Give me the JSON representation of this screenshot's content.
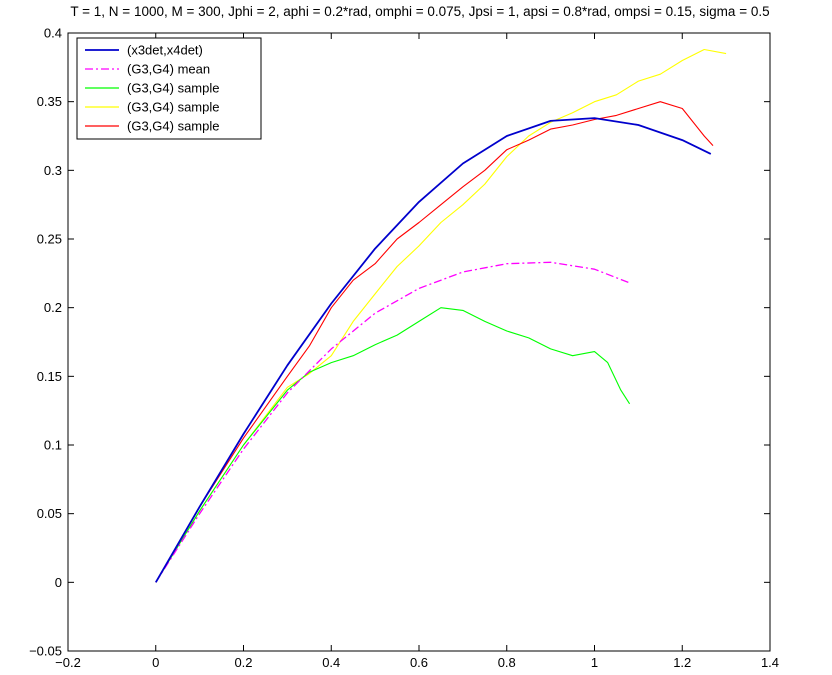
{
  "chart_data": {
    "type": "line",
    "title": "T = 1, N = 1000,  M = 300, Jphi = 2, aphi =  0.2*rad, omphi = 0.075, Jpsi = 1, apsi = 0.8*rad, ompsi = 0.15, sigma = 0.5",
    "xlabel": "",
    "ylabel": "",
    "xlim": [
      -0.2,
      1.4
    ],
    "ylim": [
      -0.05,
      0.4
    ],
    "xticks": [
      -0.2,
      0,
      0.2,
      0.4,
      0.6,
      0.8,
      1,
      1.2,
      1.4
    ],
    "xtick_labels": [
      "−0.2",
      "0",
      "0.2",
      "0.4",
      "0.6",
      "0.8",
      "1",
      "1.2",
      "1.4"
    ],
    "yticks": [
      -0.05,
      0,
      0.05,
      0.1,
      0.15,
      0.2,
      0.25,
      0.3,
      0.35,
      0.4
    ],
    "ytick_labels": [
      "−0.05",
      "0",
      "0.05",
      "0.1",
      "0.15",
      "0.2",
      "0.25",
      "0.3",
      "0.35",
      "0.4"
    ],
    "grid": false,
    "legend_position": "top-left",
    "series": [
      {
        "name": "(x3det,x4det)",
        "color": "#0000cc",
        "style": "solid",
        "x": [
          0,
          0.1,
          0.2,
          0.3,
          0.4,
          0.5,
          0.6,
          0.7,
          0.8,
          0.9,
          1.0,
          1.1,
          1.2,
          1.265
        ],
        "y": [
          0,
          0.055,
          0.108,
          0.158,
          0.203,
          0.243,
          0.277,
          0.305,
          0.325,
          0.336,
          0.338,
          0.333,
          0.322,
          0.312
        ]
      },
      {
        "name": "(G3,G4) mean",
        "color": "#ff00ff",
        "style": "dashdot",
        "x": [
          0,
          0.1,
          0.2,
          0.3,
          0.4,
          0.5,
          0.6,
          0.7,
          0.8,
          0.9,
          1.0,
          1.08
        ],
        "y": [
          0,
          0.05,
          0.097,
          0.138,
          0.17,
          0.196,
          0.214,
          0.226,
          0.232,
          0.233,
          0.228,
          0.218
        ]
      },
      {
        "name": "(G3,G4)  sample",
        "color": "#00ff00",
        "style": "solid",
        "x": [
          0,
          0.1,
          0.2,
          0.3,
          0.35,
          0.4,
          0.45,
          0.5,
          0.55,
          0.6,
          0.65,
          0.7,
          0.75,
          0.8,
          0.85,
          0.9,
          0.95,
          1.0,
          1.03,
          1.06,
          1.08
        ],
        "y": [
          0,
          0.052,
          0.1,
          0.14,
          0.153,
          0.16,
          0.165,
          0.173,
          0.18,
          0.19,
          0.2,
          0.198,
          0.19,
          0.183,
          0.178,
          0.17,
          0.165,
          0.168,
          0.16,
          0.14,
          0.13
        ]
      },
      {
        "name": "(G3,G4)  sample",
        "color": "#ffff00",
        "style": "solid",
        "x": [
          0,
          0.1,
          0.2,
          0.3,
          0.35,
          0.4,
          0.45,
          0.5,
          0.55,
          0.6,
          0.65,
          0.7,
          0.75,
          0.8,
          0.85,
          0.9,
          0.95,
          1.0,
          1.05,
          1.1,
          1.15,
          1.2,
          1.25,
          1.3
        ],
        "y": [
          0,
          0.052,
          0.1,
          0.142,
          0.152,
          0.165,
          0.19,
          0.21,
          0.23,
          0.245,
          0.262,
          0.275,
          0.29,
          0.31,
          0.325,
          0.335,
          0.342,
          0.35,
          0.355,
          0.365,
          0.37,
          0.38,
          0.388,
          0.385
        ]
      },
      {
        "name": "(G3,G4)  sample",
        "color": "#ff0000",
        "style": "solid",
        "x": [
          0,
          0.1,
          0.2,
          0.3,
          0.35,
          0.4,
          0.45,
          0.5,
          0.55,
          0.6,
          0.65,
          0.7,
          0.75,
          0.8,
          0.85,
          0.9,
          0.95,
          1.0,
          1.05,
          1.1,
          1.15,
          1.2,
          1.25,
          1.27
        ],
        "y": [
          0,
          0.055,
          0.105,
          0.15,
          0.172,
          0.2,
          0.22,
          0.232,
          0.25,
          0.262,
          0.275,
          0.288,
          0.3,
          0.315,
          0.322,
          0.33,
          0.333,
          0.337,
          0.34,
          0.345,
          0.35,
          0.345,
          0.325,
          0.318
        ]
      }
    ]
  }
}
